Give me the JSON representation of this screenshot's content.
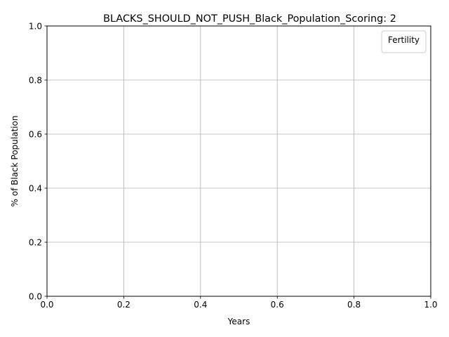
{
  "chart_data": {
    "type": "line",
    "title": "BLACKS_SHOULD_NOT_PUSH_Black_Population_Scoring: 2",
    "xlabel": "Years",
    "ylabel": "% of Black Population",
    "xlim": [
      0.0,
      1.0
    ],
    "ylim": [
      0.0,
      1.0
    ],
    "x_ticks": [
      "0.0",
      "0.2",
      "0.4",
      "0.6",
      "0.8",
      "1.0"
    ],
    "y_ticks": [
      "0.0",
      "0.2",
      "0.4",
      "0.6",
      "0.8",
      "1.0"
    ],
    "grid": true,
    "legend": {
      "title": "Fertility",
      "placement": "top-right",
      "entries": []
    },
    "series": []
  }
}
